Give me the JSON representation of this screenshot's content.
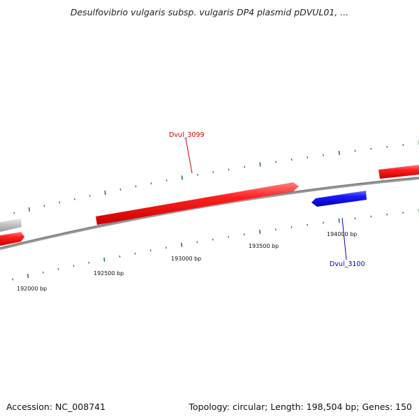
{
  "title": "Desulfovibrio vulgaris subsp. vulgaris DP4 plasmid pDVUL01, ...",
  "footer": {
    "accession": "Accession: NC_008741",
    "summary": "Topology: circular; Length: 198,504 bp; Genes: 150"
  },
  "colors": {
    "forward_gene": "#ff1a1a",
    "reverse_gene": "#1a1aff",
    "other_gene": "#bdbdbd",
    "backbone": "#808080",
    "tick": "#2e7d32",
    "forward_label": "#d00000",
    "reverse_label": "#0000c8"
  },
  "ticks": [
    {
      "label": "192000 bp",
      "bp": 192000
    },
    {
      "label": "192500 bp",
      "bp": 192500
    },
    {
      "label": "193000 bp",
      "bp": 193000
    },
    {
      "label": "193500 bp",
      "bp": 193500
    },
    {
      "label": "194000 bp",
      "bp": 194000
    }
  ],
  "genes": [
    {
      "name": "",
      "strand": "reverse",
      "kind": "other"
    },
    {
      "name": "",
      "strand": "forward",
      "kind": "cds"
    },
    {
      "name": "Dvul_3099",
      "strand": "forward",
      "kind": "cds"
    },
    {
      "name": "Dvul_3100",
      "strand": "reverse",
      "kind": "cds"
    },
    {
      "name": "",
      "strand": "forward",
      "kind": "cds"
    }
  ]
}
